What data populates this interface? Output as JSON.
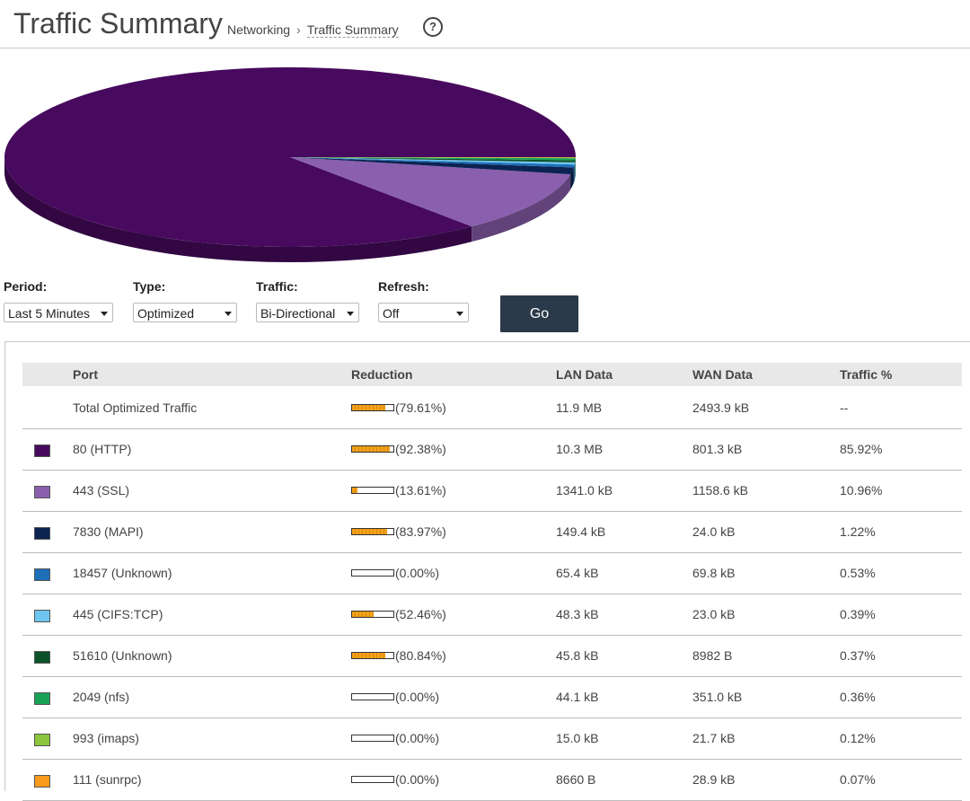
{
  "header": {
    "title": "Traffic Summary",
    "crumb1": "Networking",
    "crumb_sep": "›",
    "crumb2": "Traffic Summary",
    "help": "?"
  },
  "controls": {
    "period": {
      "label": "Period:",
      "value": "Last 5 Minutes"
    },
    "type": {
      "label": "Type:",
      "value": "Optimized"
    },
    "traffic": {
      "label": "Traffic:",
      "value": "Bi-Directional"
    },
    "refresh": {
      "label": "Refresh:",
      "value": "Off"
    },
    "go_label": "Go"
  },
  "table": {
    "headers": {
      "port": "Port",
      "reduction": "Reduction",
      "lan": "LAN Data",
      "wan": "WAN Data",
      "traffic": "Traffic %"
    },
    "rows": [
      {
        "port": "Total Optimized Traffic",
        "reduction": "(79.61%)",
        "reduction_value": 79.61,
        "lan": "11.9 MB",
        "wan": "2493.9 kB",
        "traffic": "--",
        "color": ""
      },
      {
        "port": "80 (HTTP)",
        "reduction": "(92.38%)",
        "reduction_value": 92.38,
        "lan": "10.3 MB",
        "wan": "801.3 kB",
        "traffic": "85.92%",
        "color": "#470a5e"
      },
      {
        "port": "443 (SSL)",
        "reduction": "(13.61%)",
        "reduction_value": 13.61,
        "lan": "1341.0 kB",
        "wan": "1158.6 kB",
        "traffic": "10.96%",
        "color": "#8a5fae"
      },
      {
        "port": "7830 (MAPI)",
        "reduction": "(83.97%)",
        "reduction_value": 83.97,
        "lan": "149.4 kB",
        "wan": "24.0 kB",
        "traffic": "1.22%",
        "color": "#0c2352"
      },
      {
        "port": "18457 (Unknown)",
        "reduction": "(0.00%)",
        "reduction_value": 0,
        "lan": "65.4 kB",
        "wan": "69.8 kB",
        "traffic": "0.53%",
        "color": "#1d6fb8"
      },
      {
        "port": "445 (CIFS:TCP)",
        "reduction": "(52.46%)",
        "reduction_value": 52.46,
        "lan": "48.3 kB",
        "wan": "23.0 kB",
        "traffic": "0.39%",
        "color": "#6ec6ef"
      },
      {
        "port": "51610 (Unknown)",
        "reduction": "(80.84%)",
        "reduction_value": 80.84,
        "lan": "45.8 kB",
        "wan": "8982 B",
        "traffic": "0.37%",
        "color": "#0b5229"
      },
      {
        "port": "2049 (nfs)",
        "reduction": "(0.00%)",
        "reduction_value": 0,
        "lan": "44.1 kB",
        "wan": "351.0 kB",
        "traffic": "0.36%",
        "color": "#17a256"
      },
      {
        "port": "993 (imaps)",
        "reduction": "(0.00%)",
        "reduction_value": 0,
        "lan": "15.0 kB",
        "wan": "21.7 kB",
        "traffic": "0.12%",
        "color": "#8cc63f"
      },
      {
        "port": "111 (sunrpc)",
        "reduction": "(0.00%)",
        "reduction_value": 0,
        "lan": "8660 B",
        "wan": "28.9 kB",
        "traffic": "0.07%",
        "color": "#f79a1e"
      }
    ]
  },
  "chart_data": {
    "type": "pie",
    "title": "",
    "slices": [
      {
        "label": "80 (HTTP)",
        "value": 85.92,
        "color": "#470a5e"
      },
      {
        "label": "443 (SSL)",
        "value": 10.96,
        "color": "#8a5fae"
      },
      {
        "label": "7830 (MAPI)",
        "value": 1.22,
        "color": "#0c2352"
      },
      {
        "label": "18457 (Unknown)",
        "value": 0.53,
        "color": "#1d6fb8"
      },
      {
        "label": "445 (CIFS:TCP)",
        "value": 0.39,
        "color": "#6ec6ef"
      },
      {
        "label": "51610 (Unknown)",
        "value": 0.37,
        "color": "#0b5229"
      },
      {
        "label": "2049 (nfs)",
        "value": 0.36,
        "color": "#17a256"
      },
      {
        "label": "993 (imaps)",
        "value": 0.12,
        "color": "#8cc63f"
      },
      {
        "label": "111 (sunrpc)",
        "value": 0.07,
        "color": "#f79a1e"
      }
    ]
  }
}
